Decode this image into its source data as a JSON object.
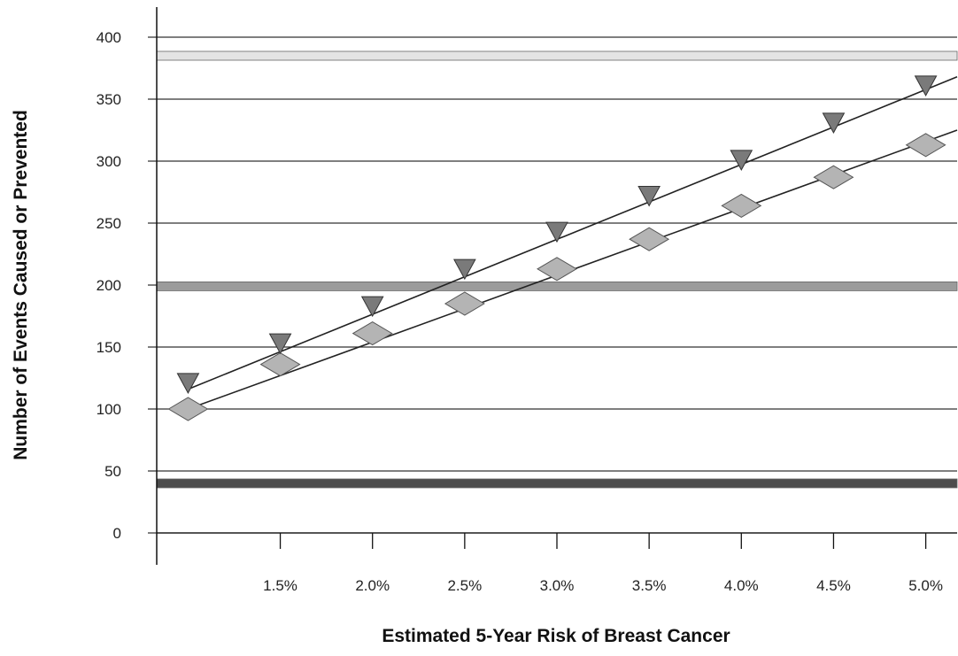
{
  "chart_data": {
    "type": "line",
    "title": "",
    "xlabel": "Estimated 5-Year Risk of Breast Cancer",
    "ylabel": "Number of Events Caused or Prevented",
    "x": [
      1.0,
      1.5,
      2.0,
      2.5,
      3.0,
      3.5,
      4.0,
      4.5,
      5.0
    ],
    "x_tick_labels": [
      "1.5%",
      "2.0%",
      "2.5%",
      "3.0%",
      "3.5%",
      "4.0%",
      "4.5%",
      "5.0%"
    ],
    "x_tick_values": [
      1.5,
      2.0,
      2.5,
      3.0,
      3.5,
      4.0,
      4.5,
      5.0
    ],
    "xlim": [
      0.83,
      5.17
    ],
    "ylim": [
      0,
      400
    ],
    "y_ticks": [
      0,
      50,
      100,
      150,
      200,
      250,
      300,
      350,
      400
    ],
    "grid": "horizontal",
    "legend": "none",
    "series": [
      {
        "marker": "triangle-down",
        "color": "#7a7a7a",
        "values": [
          120,
          152,
          182,
          212,
          242,
          271,
          300,
          330,
          360
        ],
        "trend": [
          116,
          368
        ]
      },
      {
        "marker": "diamond",
        "color": "#b4b4b4",
        "values": [
          100,
          136,
          161,
          185,
          213,
          237,
          264,
          287,
          313
        ],
        "trend": [
          100,
          325
        ]
      }
    ],
    "reference_bands": [
      {
        "value": 385,
        "color": "#e4e4e4"
      },
      {
        "value": 199,
        "color": "#9b9b9b"
      },
      {
        "value": 40,
        "color": "#4c4c4c"
      }
    ]
  }
}
